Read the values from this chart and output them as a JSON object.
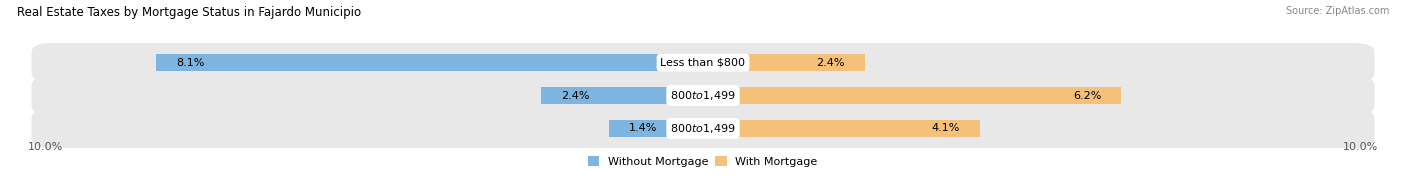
{
  "title": "Real Estate Taxes by Mortgage Status in Fajardo Municipio",
  "source": "Source: ZipAtlas.com",
  "rows": [
    {
      "label": "Less than $800",
      "without_mortgage": 8.1,
      "with_mortgage": 2.4
    },
    {
      "label": "$800 to $1,499",
      "without_mortgage": 2.4,
      "with_mortgage": 6.2
    },
    {
      "label": "$800 to $1,499",
      "without_mortgage": 1.4,
      "with_mortgage": 4.1
    }
  ],
  "max_val": 10.0,
  "color_without": "#7db4e0",
  "color_with": "#f5c07a",
  "bg_row": "#e8e8e8",
  "bar_height": 0.52,
  "x_left_label": "10.0%",
  "x_right_label": "10.0%",
  "legend_without": "Without Mortgage",
  "legend_with": "With Mortgage",
  "title_fontsize": 8.5,
  "label_fontsize": 8,
  "tick_fontsize": 8,
  "source_fontsize": 7
}
